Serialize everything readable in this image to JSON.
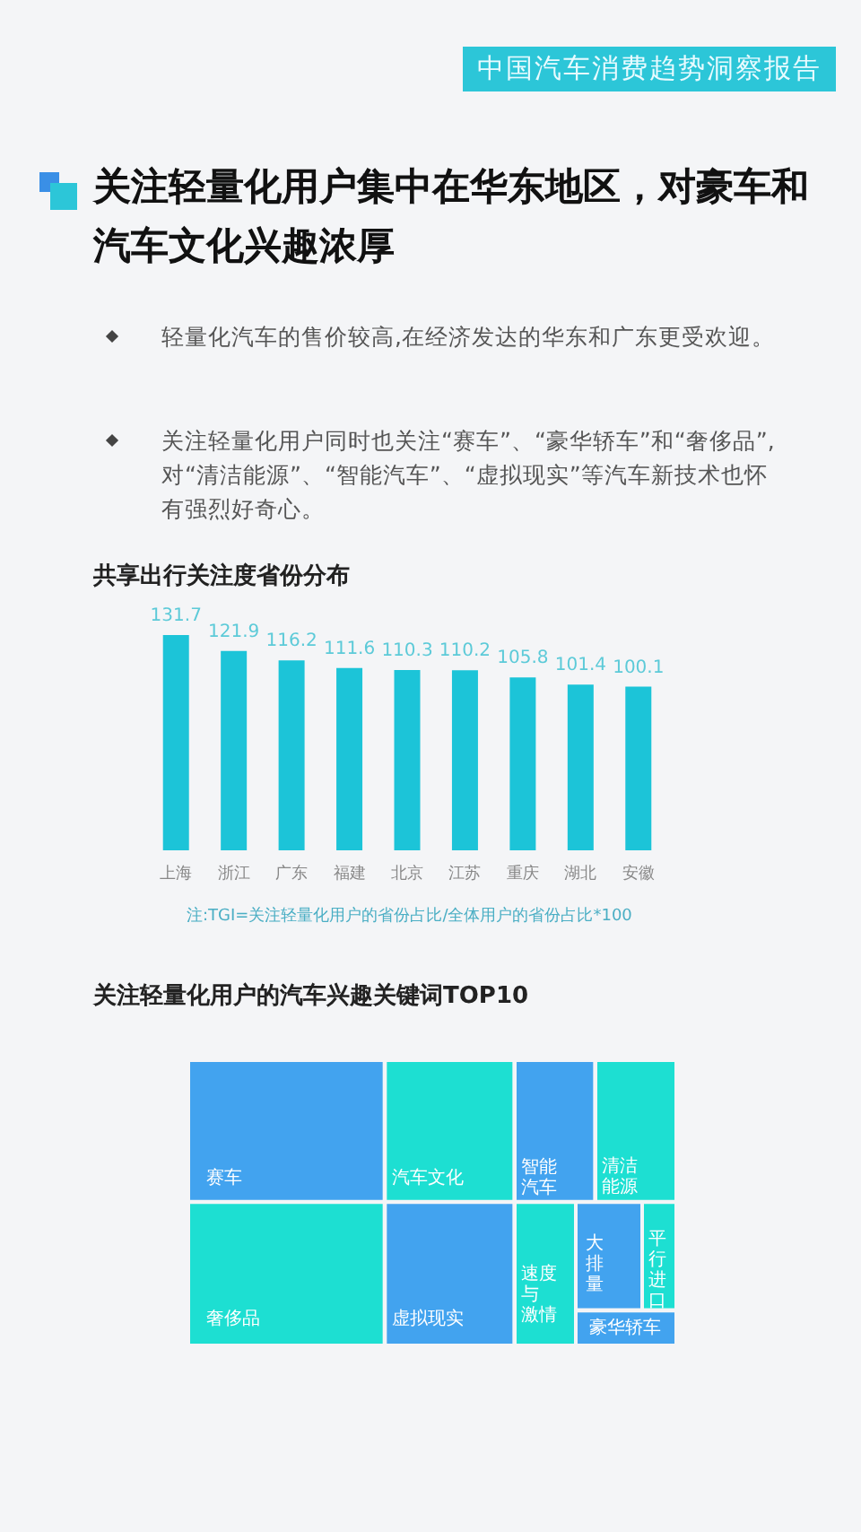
{
  "chart_data": [
    {
      "type": "other",
      "subtitle": "中国汽车消费趋势洞察报告",
      "title": "关注轻量化用户集中在华东地区，对豪车和汽车文化兴趣浓厚",
      "annotations": [
        "轻量化汽车的售价较高,在经济发达的华东和广东更受欢迎。",
        "关注轻量化用户同时也关注“赛车”、“豪华轿车”和“奢侈品”,对“清洁能源”、“智能汽车”、“虚拟现实”等汽车新技术也怀有强烈好奇心。"
      ]
    },
    {
      "type": "bar",
      "title": "共享出行关注度省份分布",
      "categories": [
        "上海",
        "浙江",
        "广东",
        "福建",
        "北京",
        "江苏",
        "重庆",
        "湖北",
        "安徽"
      ],
      "values": [
        131.7,
        121.9,
        116.2,
        111.6,
        110.3,
        110.2,
        105.8,
        101.4,
        100.1
      ],
      "color": "#1cc4d8",
      "data_labels": true,
      "annotations": [
        "注:TGI=关注轻量化用户的省份占比/全体用户的省份占比*100"
      ]
    },
    {
      "type": "other",
      "title": "关注轻量化用户的汽车兴趣关键词TOP10",
      "categories": [
        "赛车",
        "汽车文化",
        "智能汽车",
        "清洁能源",
        "奢侈品",
        "虚拟现实",
        "速度与激情",
        "大排量",
        "平行进口",
        "豪华轿车"
      ],
      "colors": [
        "#42a3ef",
        "#1ddfd2",
        "#42a3ef",
        "#1ddfd2",
        "#1ddfd2",
        "#42a3ef",
        "#1ddfd2",
        "#42a3ef",
        "#1ddfd2",
        "#42a3ef"
      ]
    }
  ]
}
